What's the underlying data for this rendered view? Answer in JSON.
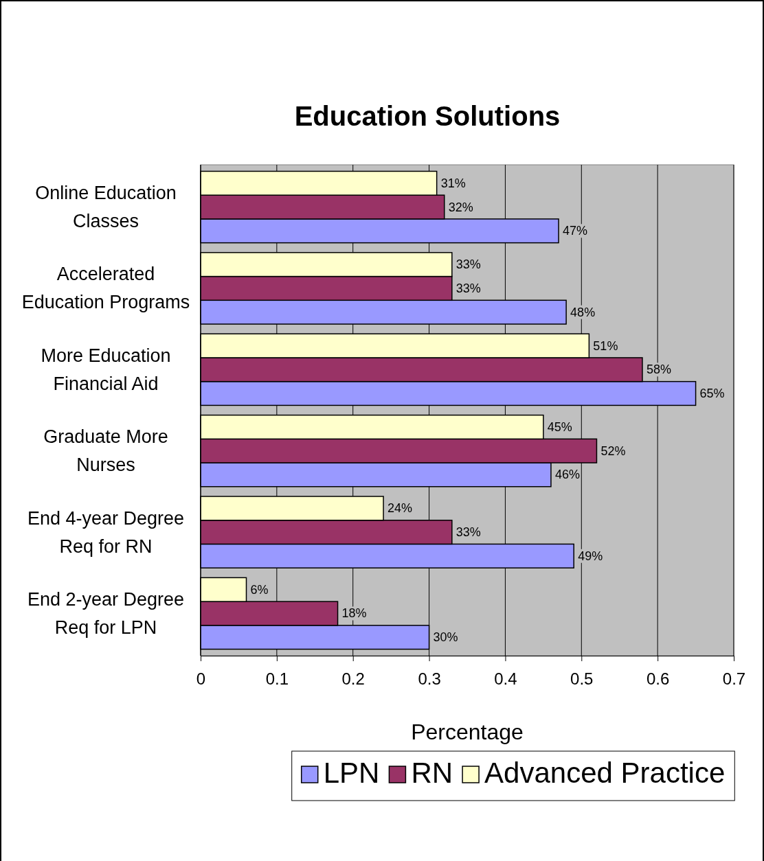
{
  "chart_data": {
    "type": "bar",
    "orientation": "horizontal",
    "title": "Education Solutions",
    "xlabel": "Percentage",
    "categories": [
      "Online Education Classes",
      "Accelerated Education Programs",
      "More Education Financial Aid",
      "Graduate More Nurses",
      "End 4-year Degree Req for RN",
      "End 2-year Degree Req for LPN"
    ],
    "series": [
      {
        "name": "LPN",
        "color": "#9999ff",
        "values": [
          0.47,
          0.48,
          0.65,
          0.46,
          0.49,
          0.3
        ],
        "value_labels": [
          "47%",
          "48%",
          "65%",
          "46%",
          "49%",
          "30%"
        ]
      },
      {
        "name": "RN",
        "color": "#993366",
        "values": [
          0.32,
          0.33,
          0.58,
          0.52,
          0.33,
          0.18
        ],
        "value_labels": [
          "32%",
          "33%",
          "58%",
          "52%",
          "33%",
          "18%"
        ]
      },
      {
        "name": "Advanced Practice",
        "color": "#ffffcc",
        "values": [
          0.31,
          0.33,
          0.51,
          0.45,
          0.24,
          0.06
        ],
        "value_labels": [
          "31%",
          "33%",
          "51%",
          "45%",
          "24%",
          "6%"
        ]
      }
    ],
    "xlim": [
      0,
      0.7
    ],
    "xticks": [
      0,
      0.1,
      0.2,
      0.3,
      0.4,
      0.5,
      0.6,
      0.7
    ],
    "grid": "x",
    "legend": "bottom"
  }
}
